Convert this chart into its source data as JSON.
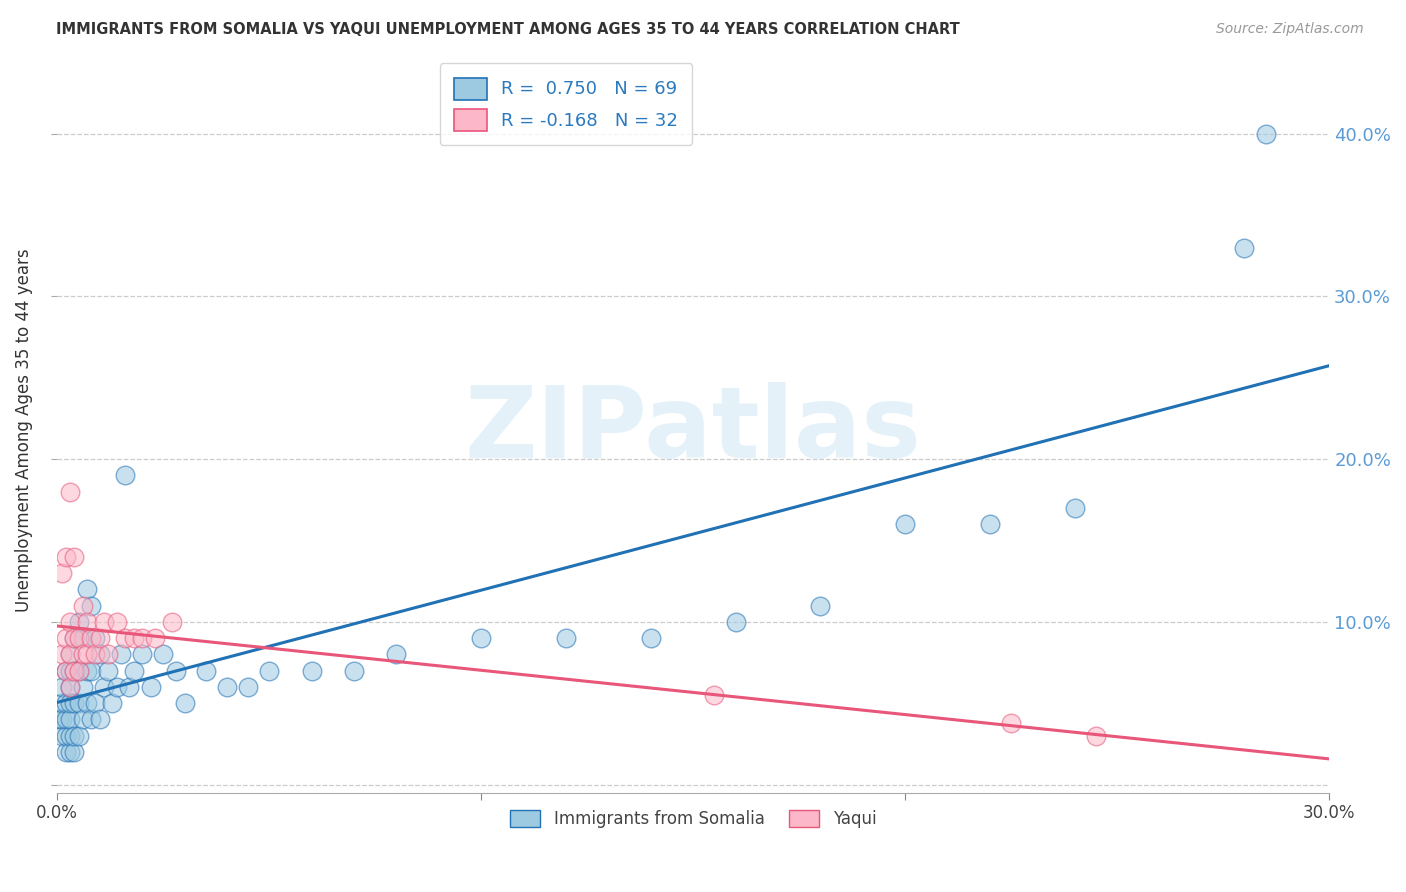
{
  "title": "IMMIGRANTS FROM SOMALIA VS YAQUI UNEMPLOYMENT AMONG AGES 35 TO 44 YEARS CORRELATION CHART",
  "source": "Source: ZipAtlas.com",
  "ylabel": "Unemployment Among Ages 35 to 44 years",
  "xlim": [
    0.0,
    0.3
  ],
  "ylim": [
    -0.005,
    0.44
  ],
  "watermark": "ZIPatlas",
  "legend_somalia": "Immigrants from Somalia",
  "legend_yaqui": "Yaqui",
  "color_somalia": "#9ecae1",
  "color_yaqui": "#fcb8c8",
  "color_line_somalia": "#2171b5",
  "color_line_yaqui": "#e8567a",
  "somalia_x": [
    0.0005,
    0.001,
    0.001,
    0.001,
    0.001,
    0.002,
    0.002,
    0.002,
    0.002,
    0.002,
    0.003,
    0.003,
    0.003,
    0.003,
    0.003,
    0.003,
    0.003,
    0.004,
    0.004,
    0.004,
    0.004,
    0.004,
    0.005,
    0.005,
    0.005,
    0.005,
    0.006,
    0.006,
    0.006,
    0.007,
    0.007,
    0.007,
    0.008,
    0.008,
    0.008,
    0.009,
    0.009,
    0.01,
    0.01,
    0.011,
    0.012,
    0.013,
    0.014,
    0.015,
    0.016,
    0.017,
    0.018,
    0.02,
    0.022,
    0.025,
    0.028,
    0.03,
    0.035,
    0.04,
    0.045,
    0.05,
    0.06,
    0.07,
    0.08,
    0.1,
    0.12,
    0.14,
    0.16,
    0.18,
    0.2,
    0.22,
    0.24,
    0.28,
    0.285
  ],
  "somalia_y": [
    0.04,
    0.03,
    0.04,
    0.05,
    0.06,
    0.02,
    0.03,
    0.04,
    0.05,
    0.07,
    0.02,
    0.03,
    0.04,
    0.05,
    0.06,
    0.07,
    0.08,
    0.02,
    0.03,
    0.05,
    0.07,
    0.09,
    0.03,
    0.05,
    0.07,
    0.1,
    0.04,
    0.06,
    0.09,
    0.05,
    0.07,
    0.12,
    0.04,
    0.07,
    0.11,
    0.05,
    0.09,
    0.04,
    0.08,
    0.06,
    0.07,
    0.05,
    0.06,
    0.08,
    0.19,
    0.06,
    0.07,
    0.08,
    0.06,
    0.08,
    0.07,
    0.05,
    0.07,
    0.06,
    0.06,
    0.07,
    0.07,
    0.07,
    0.08,
    0.09,
    0.09,
    0.09,
    0.1,
    0.11,
    0.16,
    0.16,
    0.17,
    0.33,
    0.4
  ],
  "yaqui_x": [
    0.001,
    0.001,
    0.002,
    0.002,
    0.002,
    0.003,
    0.003,
    0.003,
    0.003,
    0.004,
    0.004,
    0.004,
    0.005,
    0.005,
    0.006,
    0.006,
    0.007,
    0.007,
    0.008,
    0.009,
    0.01,
    0.011,
    0.012,
    0.014,
    0.016,
    0.018,
    0.02,
    0.023,
    0.027,
    0.155,
    0.225,
    0.245
  ],
  "yaqui_y": [
    0.08,
    0.13,
    0.07,
    0.09,
    0.14,
    0.06,
    0.08,
    0.1,
    0.18,
    0.07,
    0.09,
    0.14,
    0.07,
    0.09,
    0.08,
    0.11,
    0.08,
    0.1,
    0.09,
    0.08,
    0.09,
    0.1,
    0.08,
    0.1,
    0.09,
    0.09,
    0.09,
    0.09,
    0.1,
    0.055,
    0.038,
    0.03
  ],
  "ytick_vals": [
    0.0,
    0.1,
    0.2,
    0.3,
    0.4
  ],
  "xtick_vals": [
    0.0,
    0.1,
    0.2,
    0.3
  ],
  "xtick_labels": [
    "0.0%",
    "",
    "",
    "30.0%"
  ],
  "grid_color": "#cccccc",
  "background_color": "#ffffff"
}
